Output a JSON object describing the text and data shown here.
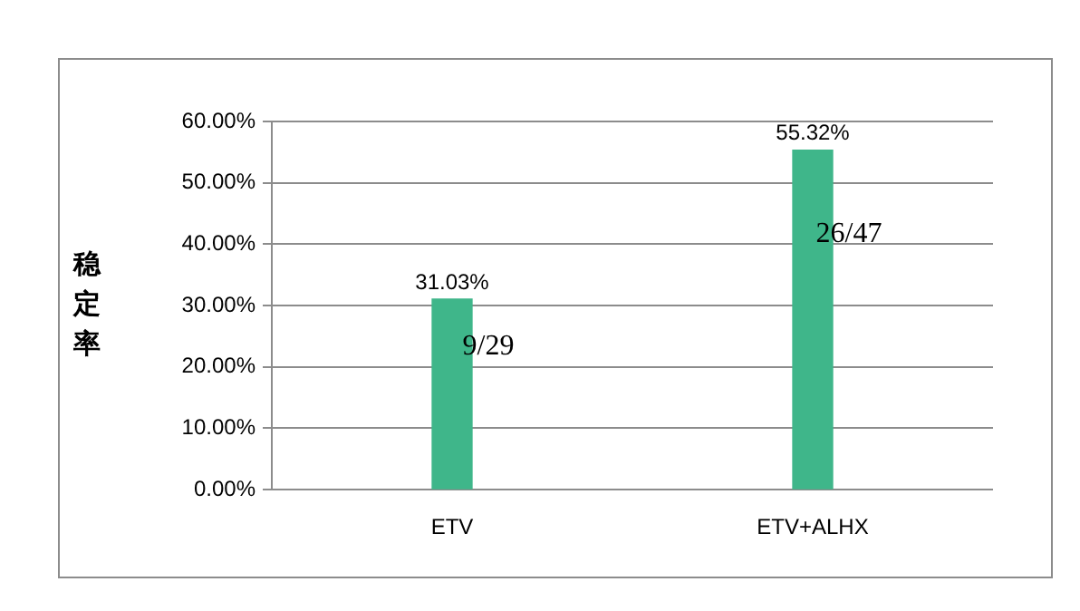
{
  "chart_data": {
    "type": "bar",
    "ylabel": "稳定率",
    "categories": [
      "ETV",
      "ETV+ALHX"
    ],
    "values": [
      31.03,
      55.32
    ],
    "colors": [
      "#3fb68a",
      "#3fb68a"
    ],
    "value_labels": [
      "31.03%",
      "55.32%"
    ],
    "ylim": [
      0,
      60
    ],
    "yticks": [
      {
        "value": 0,
        "label": "0.00%"
      },
      {
        "value": 10,
        "label": "10.00%"
      },
      {
        "value": 20,
        "label": "20.00%"
      },
      {
        "value": 30,
        "label": "30.00%"
      },
      {
        "value": 40,
        "label": "40.00%"
      },
      {
        "value": 50,
        "label": "50.00%"
      },
      {
        "value": 60,
        "label": "60.00%"
      }
    ],
    "grid": "y",
    "annotations": [
      "9/29",
      "26/47"
    ]
  }
}
